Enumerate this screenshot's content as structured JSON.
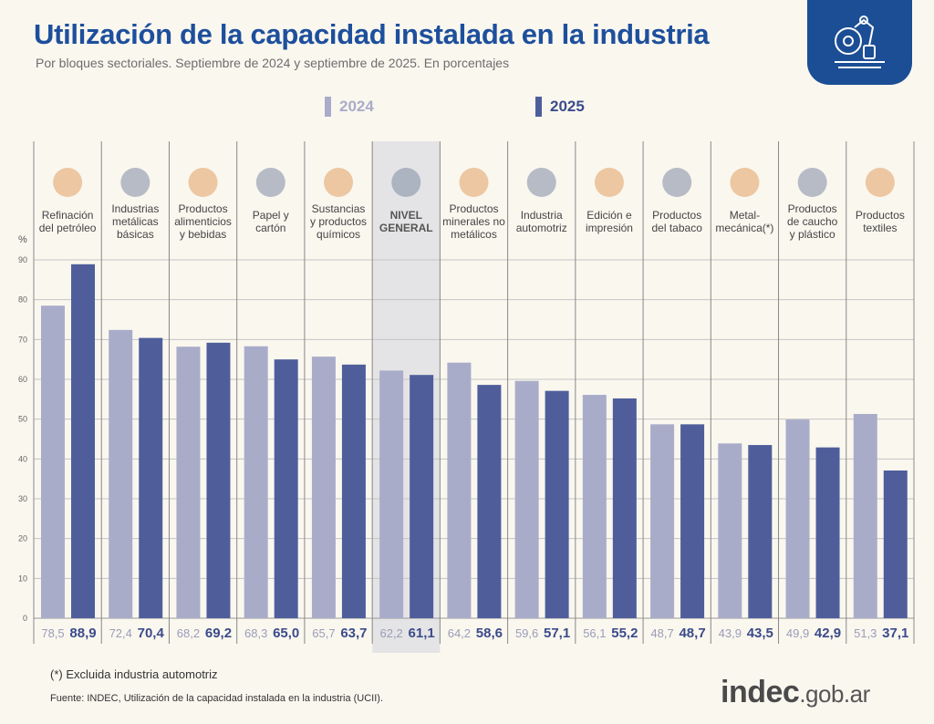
{
  "header": {
    "title": "Utilización de la capacidad instalada en la industria",
    "subtitle": "Por bloques sectoriales. Septiembre de 2024 y septiembre de 2025. En porcentajes"
  },
  "footer": {
    "note": "(*) Excluida industria automotriz",
    "source": "Fuente: INDEC, Utilización de la capacidad instalada en la industria (UCII).",
    "brand_main": "indec",
    "brand_domain": ".gob.ar"
  },
  "colors": {
    "y2024": "#a9acc9",
    "y2025": "#4f5e9b",
    "title": "#1d4f9c",
    "highlight": "#e4e4e6"
  },
  "chart_data": {
    "type": "bar",
    "title": "Utilización de la capacidad instalada en la industria",
    "ylabel": "%",
    "ylim": [
      0,
      90
    ],
    "yticks": [
      0,
      10,
      20,
      30,
      40,
      50,
      60,
      70,
      80,
      90
    ],
    "grid": true,
    "legend": "top",
    "highlight_category": "NIVEL GENERAL",
    "categories": [
      [
        "Refinación",
        "del petróleo"
      ],
      [
        "Industrias",
        "metálicas",
        "básicas"
      ],
      [
        "Productos",
        "alimenticios",
        "y bebidas"
      ],
      [
        "Papel y",
        "cartón"
      ],
      [
        "Sustancias",
        "y productos",
        "químicos"
      ],
      [
        "NIVEL",
        "GENERAL"
      ],
      [
        "Productos",
        "minerales no",
        "metálicos"
      ],
      [
        "Industria",
        "automotriz"
      ],
      [
        "Edición e",
        "impresión"
      ],
      [
        "Productos",
        "del tabaco"
      ],
      [
        "Metal-",
        "mecánica(*)"
      ],
      [
        "Productos",
        "de caucho",
        "y plástico"
      ],
      [
        "Productos",
        "textiles"
      ]
    ],
    "series": [
      {
        "name": "2024",
        "values": [
          78.5,
          72.4,
          68.2,
          68.3,
          65.7,
          62.2,
          64.2,
          59.6,
          56.1,
          48.7,
          43.9,
          49.9,
          51.3
        ],
        "labels": [
          "78,5",
          "72,4",
          "68,2",
          "68,3",
          "65,7",
          "62,2",
          "64,2",
          "59,6",
          "56,1",
          "48,7",
          "43,9",
          "49,9",
          "51,3"
        ]
      },
      {
        "name": "2025",
        "values": [
          88.9,
          70.4,
          69.2,
          65.0,
          63.7,
          61.1,
          58.6,
          57.1,
          55.2,
          48.7,
          43.5,
          42.9,
          37.1
        ],
        "labels": [
          "88,9",
          "70,4",
          "69,2",
          "65,0",
          "63,7",
          "61,1",
          "58,6",
          "57,1",
          "55,2",
          "48,7",
          "43,5",
          "42,9",
          "37,1"
        ]
      }
    ]
  }
}
